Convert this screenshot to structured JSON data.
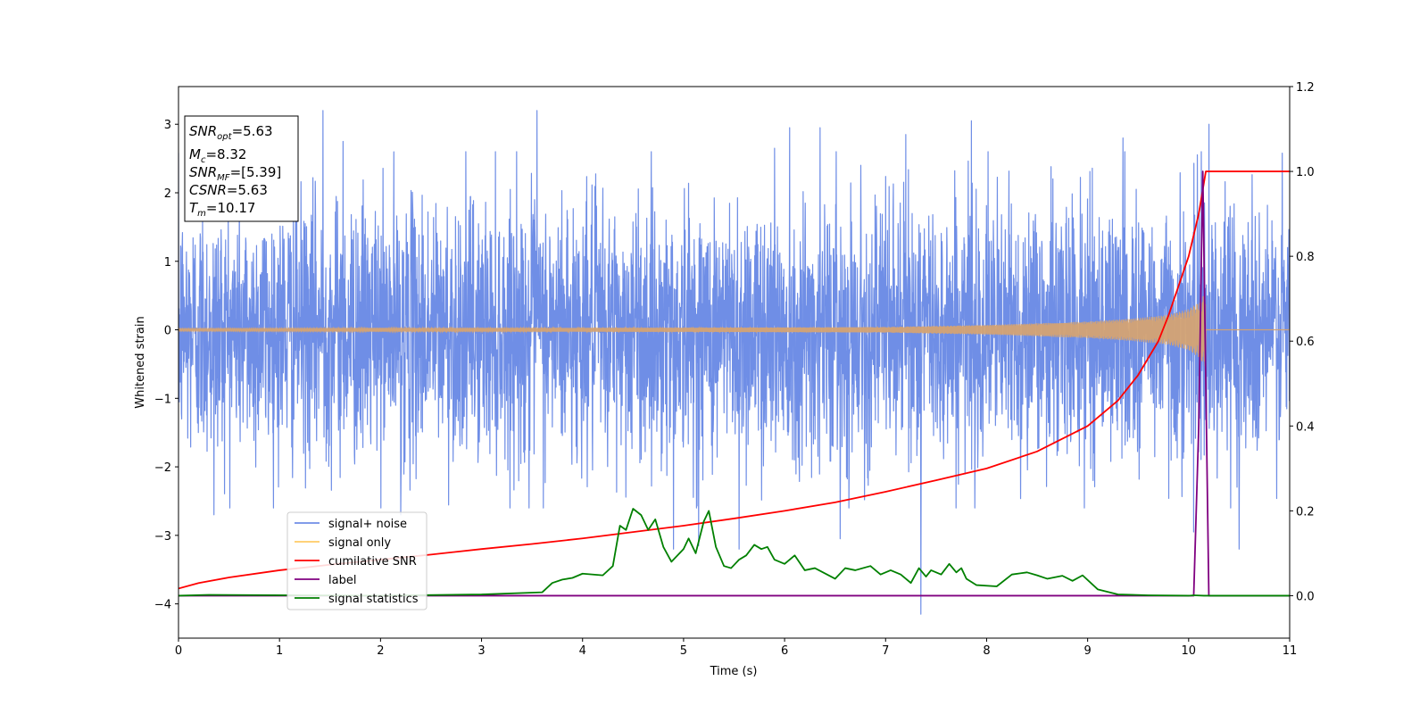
{
  "chart_data": {
    "type": "line",
    "xlabel": "Time (s)",
    "ylabel": "Whitened strain",
    "xlim": [
      0,
      11
    ],
    "ylim": [
      -4.5,
      3.55
    ],
    "y2lim": [
      -0.1,
      1.2
    ],
    "xticks": [
      "0",
      "1",
      "2",
      "3",
      "4",
      "5",
      "6",
      "7",
      "8",
      "9",
      "10",
      "11"
    ],
    "yticks": [
      "3",
      "2",
      "1",
      "0",
      "−1",
      "−2",
      "−3",
      "−4"
    ],
    "y2ticks": [
      "1.2",
      "1.0",
      "0.8",
      "0.6",
      "0.4",
      "0.2",
      "0.0"
    ],
    "legend_location": "lower-left",
    "colors": {
      "noise": "#6f8ee6",
      "signal": "#d4a373",
      "signal_legend": "#ffcc66",
      "csnr": "#ff0000",
      "label": "#800080",
      "stats": "#008000"
    },
    "annotation": {
      "snr_opt": {
        "main": "SNR",
        "sub": "opt",
        "value": "=5.63"
      },
      "mc": {
        "main": "M",
        "sub": "c",
        "value": "=8.32"
      },
      "snr_mf": {
        "main": "SNR",
        "sub": "MF",
        "value": "=[5.39]"
      },
      "csnr": {
        "main": "CSNR",
        "value": "=5.63"
      },
      "tm": {
        "main": "T",
        "sub": "m",
        "value": "=10.17"
      }
    },
    "series": [
      {
        "name": "signal+ noise",
        "axis": "left",
        "style": "noise band",
        "x_range": [
          0,
          11
        ],
        "typical_envelope": [
          -1.5,
          1.5
        ],
        "spikes": [
          {
            "x": 0.35,
            "y": -2.7
          },
          {
            "x": 1.43,
            "y": 3.2
          },
          {
            "x": 1.63,
            "y": 2.75
          },
          {
            "x": 2.2,
            "y": -2.7
          },
          {
            "x": 3.55,
            "y": 3.2
          },
          {
            "x": 3.47,
            "y": -2.6
          },
          {
            "x": 4.9,
            "y": -3.2
          },
          {
            "x": 5.15,
            "y": -3.15
          },
          {
            "x": 5.55,
            "y": -3.2
          },
          {
            "x": 5.9,
            "y": 2.65
          },
          {
            "x": 6.05,
            "y": 2.95
          },
          {
            "x": 6.35,
            "y": 2.95
          },
          {
            "x": 6.55,
            "y": -3.05
          },
          {
            "x": 7.2,
            "y": 2.85
          },
          {
            "x": 7.35,
            "y": -4.15
          },
          {
            "x": 7.85,
            "y": 3.05
          },
          {
            "x": 9.35,
            "y": 2.8
          },
          {
            "x": 10.05,
            "y": -2.95
          },
          {
            "x": 10.2,
            "y": 3.0
          },
          {
            "x": 10.5,
            "y": -3.2
          }
        ]
      },
      {
        "name": "signal only",
        "axis": "left",
        "style": "chirp",
        "t_merger": 10.17,
        "amplitude_points": [
          {
            "x": 0,
            "y": 0.02
          },
          {
            "x": 5,
            "y": 0.03
          },
          {
            "x": 7,
            "y": 0.04
          },
          {
            "x": 8,
            "y": 0.07
          },
          {
            "x": 9,
            "y": 0.12
          },
          {
            "x": 9.5,
            "y": 0.17
          },
          {
            "x": 9.8,
            "y": 0.22
          },
          {
            "x": 10.0,
            "y": 0.3
          },
          {
            "x": 10.1,
            "y": 0.4
          },
          {
            "x": 10.17,
            "y": 0.55
          }
        ]
      },
      {
        "name": "cumilative SNR",
        "axis": "right",
        "x": [
          0,
          0.2,
          0.5,
          1,
          1.5,
          2,
          2.5,
          3,
          3.5,
          4,
          4.5,
          5,
          5.5,
          6,
          6.5,
          7,
          7.5,
          8,
          8.5,
          9,
          9.3,
          9.5,
          9.7,
          9.8,
          9.9,
          10.0,
          10.1,
          10.17,
          10.3,
          11
        ],
        "values": [
          0.017,
          0.03,
          0.043,
          0.06,
          0.073,
          0.085,
          0.097,
          0.11,
          0.122,
          0.135,
          0.15,
          0.165,
          0.182,
          0.2,
          0.22,
          0.245,
          0.272,
          0.3,
          0.34,
          0.4,
          0.46,
          0.52,
          0.6,
          0.66,
          0.73,
          0.8,
          0.9,
          1.0,
          1.0,
          1.0
        ]
      },
      {
        "name": "label",
        "axis": "right",
        "x": [
          0,
          10.05,
          10.1,
          10.14,
          10.2,
          11
        ],
        "values": [
          0,
          0,
          0.4,
          1.0,
          0,
          0
        ]
      },
      {
        "name": "signal statistics",
        "axis": "right",
        "x": [
          0,
          0.3,
          2,
          3,
          3.6,
          3.7,
          3.8,
          3.9,
          4.0,
          4.2,
          4.3,
          4.37,
          4.43,
          4.5,
          4.58,
          4.65,
          4.72,
          4.8,
          4.88,
          5.0,
          5.05,
          5.12,
          5.2,
          5.25,
          5.32,
          5.4,
          5.47,
          5.55,
          5.62,
          5.7,
          5.77,
          5.83,
          5.9,
          6.0,
          6.1,
          6.2,
          6.3,
          6.5,
          6.6,
          6.7,
          6.85,
          6.95,
          7.05,
          7.15,
          7.25,
          7.33,
          7.4,
          7.45,
          7.55,
          7.63,
          7.7,
          7.75,
          7.8,
          7.9,
          8.1,
          8.25,
          8.4,
          8.5,
          8.6,
          8.75,
          8.85,
          8.95,
          9.1,
          9.3,
          9.6,
          10.0,
          10.05,
          10.15,
          11
        ],
        "values": [
          0.0,
          0.002,
          0.0,
          0.003,
          0.008,
          0.03,
          0.038,
          0.042,
          0.052,
          0.048,
          0.07,
          0.165,
          0.155,
          0.205,
          0.19,
          0.155,
          0.18,
          0.115,
          0.08,
          0.11,
          0.135,
          0.1,
          0.175,
          0.2,
          0.115,
          0.07,
          0.065,
          0.085,
          0.095,
          0.12,
          0.11,
          0.115,
          0.085,
          0.075,
          0.095,
          0.06,
          0.065,
          0.04,
          0.065,
          0.06,
          0.07,
          0.05,
          0.06,
          0.05,
          0.03,
          0.065,
          0.045,
          0.06,
          0.05,
          0.075,
          0.055,
          0.065,
          0.04,
          0.025,
          0.022,
          0.05,
          0.055,
          0.048,
          0.04,
          0.047,
          0.035,
          0.048,
          0.015,
          0.003,
          0.001,
          0.0,
          0.001,
          0.0,
          0.0
        ]
      }
    ]
  }
}
